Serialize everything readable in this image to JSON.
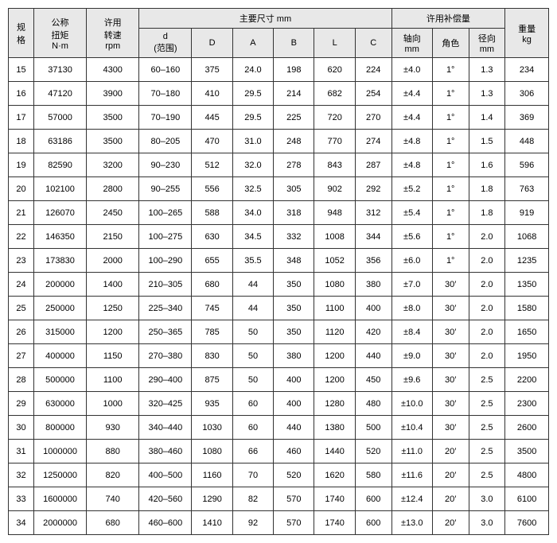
{
  "headers": {
    "spec": "规\n格",
    "torque": "公称\n扭矩\nN·m",
    "speed": "许用\n转速\nrpm",
    "mainDim": "主要尺寸 mm",
    "d": "d\n(范围)",
    "D": "D",
    "A": "A",
    "B": "B",
    "L": "L",
    "C": "C",
    "comp": "许用补偿量",
    "axial": "轴向\nmm",
    "angle": "角色",
    "radial": "径向\nmm",
    "weight": "重量\nkg"
  },
  "rows": [
    {
      "spec": "15",
      "torque": "37130",
      "speed": "4300",
      "d": "60–160",
      "D": "375",
      "A": "24.0",
      "B": "198",
      "L": "620",
      "C": "224",
      "axial": "±4.0",
      "angle": "1°",
      "radial": "1.3",
      "weight": "234"
    },
    {
      "spec": "16",
      "torque": "47120",
      "speed": "3900",
      "d": "70–180",
      "D": "410",
      "A": "29.5",
      "B": "214",
      "L": "682",
      "C": "254",
      "axial": "±4.4",
      "angle": "1°",
      "radial": "1.3",
      "weight": "306"
    },
    {
      "spec": "17",
      "torque": "57000",
      "speed": "3500",
      "d": "70–190",
      "D": "445",
      "A": "29.5",
      "B": "225",
      "L": "720",
      "C": "270",
      "axial": "±4.4",
      "angle": "1°",
      "radial": "1.4",
      "weight": "369"
    },
    {
      "spec": "18",
      "torque": "63186",
      "speed": "3500",
      "d": "80–205",
      "D": "470",
      "A": "31.0",
      "B": "248",
      "L": "770",
      "C": "274",
      "axial": "±4.8",
      "angle": "1°",
      "radial": "1.5",
      "weight": "448"
    },
    {
      "spec": "19",
      "torque": "82590",
      "speed": "3200",
      "d": "90–230",
      "D": "512",
      "A": "32.0",
      "B": "278",
      "L": "843",
      "C": "287",
      "axial": "±4.8",
      "angle": "1°",
      "radial": "1.6",
      "weight": "596"
    },
    {
      "spec": "20",
      "torque": "102100",
      "speed": "2800",
      "d": "90–255",
      "D": "556",
      "A": "32.5",
      "B": "305",
      "L": "902",
      "C": "292",
      "axial": "±5.2",
      "angle": "1°",
      "radial": "1.8",
      "weight": "763"
    },
    {
      "spec": "21",
      "torque": "126070",
      "speed": "2450",
      "d": "100–265",
      "D": "588",
      "A": "34.0",
      "B": "318",
      "L": "948",
      "C": "312",
      "axial": "±5.4",
      "angle": "1°",
      "radial": "1.8",
      "weight": "919"
    },
    {
      "spec": "22",
      "torque": "146350",
      "speed": "2150",
      "d": "100–275",
      "D": "630",
      "A": "34.5",
      "B": "332",
      "L": "1008",
      "C": "344",
      "axial": "±5.6",
      "angle": "1°",
      "radial": "2.0",
      "weight": "1068"
    },
    {
      "spec": "23",
      "torque": "173830",
      "speed": "2000",
      "d": "100–290",
      "D": "655",
      "A": "35.5",
      "B": "348",
      "L": "1052",
      "C": "356",
      "axial": "±6.0",
      "angle": "1°",
      "radial": "2.0",
      "weight": "1235"
    },
    {
      "spec": "24",
      "torque": "200000",
      "speed": "1400",
      "d": "210–305",
      "D": "680",
      "A": "44",
      "B": "350",
      "L": "1080",
      "C": "380",
      "axial": "±7.0",
      "angle": "30′",
      "radial": "2.0",
      "weight": "1350"
    },
    {
      "spec": "25",
      "torque": "250000",
      "speed": "1250",
      "d": "225–340",
      "D": "745",
      "A": "44",
      "B": "350",
      "L": "1100",
      "C": "400",
      "axial": "±8.0",
      "angle": "30′",
      "radial": "2.0",
      "weight": "1580"
    },
    {
      "spec": "26",
      "torque": "315000",
      "speed": "1200",
      "d": "250–365",
      "D": "785",
      "A": "50",
      "B": "350",
      "L": "1120",
      "C": "420",
      "axial": "±8.4",
      "angle": "30′",
      "radial": "2.0",
      "weight": "1650"
    },
    {
      "spec": "27",
      "torque": "400000",
      "speed": "1150",
      "d": "270–380",
      "D": "830",
      "A": "50",
      "B": "380",
      "L": "1200",
      "C": "440",
      "axial": "±9.0",
      "angle": "30′",
      "radial": "2.0",
      "weight": "1950"
    },
    {
      "spec": "28",
      "torque": "500000",
      "speed": "1100",
      "d": "290–400",
      "D": "875",
      "A": "50",
      "B": "400",
      "L": "1200",
      "C": "450",
      "axial": "±9.6",
      "angle": "30′",
      "radial": "2.5",
      "weight": "2200"
    },
    {
      "spec": "29",
      "torque": "630000",
      "speed": "1000",
      "d": "320–425",
      "D": "935",
      "A": "60",
      "B": "400",
      "L": "1280",
      "C": "480",
      "axial": "±10.0",
      "angle": "30′",
      "radial": "2.5",
      "weight": "2300"
    },
    {
      "spec": "30",
      "torque": "800000",
      "speed": "930",
      "d": "340–440",
      "D": "1030",
      "A": "60",
      "B": "440",
      "L": "1380",
      "C": "500",
      "axial": "±10.4",
      "angle": "30′",
      "radial": "2.5",
      "weight": "2600"
    },
    {
      "spec": "31",
      "torque": "1000000",
      "speed": "880",
      "d": "380–460",
      "D": "1080",
      "A": "66",
      "B": "460",
      "L": "1440",
      "C": "520",
      "axial": "±11.0",
      "angle": "20′",
      "radial": "2.5",
      "weight": "3500"
    },
    {
      "spec": "32",
      "torque": "1250000",
      "speed": "820",
      "d": "400–500",
      "D": "1160",
      "A": "70",
      "B": "520",
      "L": "1620",
      "C": "580",
      "axial": "±11.6",
      "angle": "20′",
      "radial": "2.5",
      "weight": "4800"
    },
    {
      "spec": "33",
      "torque": "1600000",
      "speed": "740",
      "d": "420–560",
      "D": "1290",
      "A": "82",
      "B": "570",
      "L": "1740",
      "C": "600",
      "axial": "±12.4",
      "angle": "20′",
      "radial": "3.0",
      "weight": "6100"
    },
    {
      "spec": "34",
      "torque": "2000000",
      "speed": "680",
      "d": "460–600",
      "D": "1410",
      "A": "92",
      "B": "570",
      "L": "1740",
      "C": "600",
      "axial": "±13.0",
      "angle": "20′",
      "radial": "3.0",
      "weight": "7600"
    }
  ],
  "style": {
    "header_bg": "#e8e8e8",
    "cell_bg": "#ffffff",
    "border_color": "#333333",
    "font_size": 11,
    "text_color": "#000000"
  }
}
